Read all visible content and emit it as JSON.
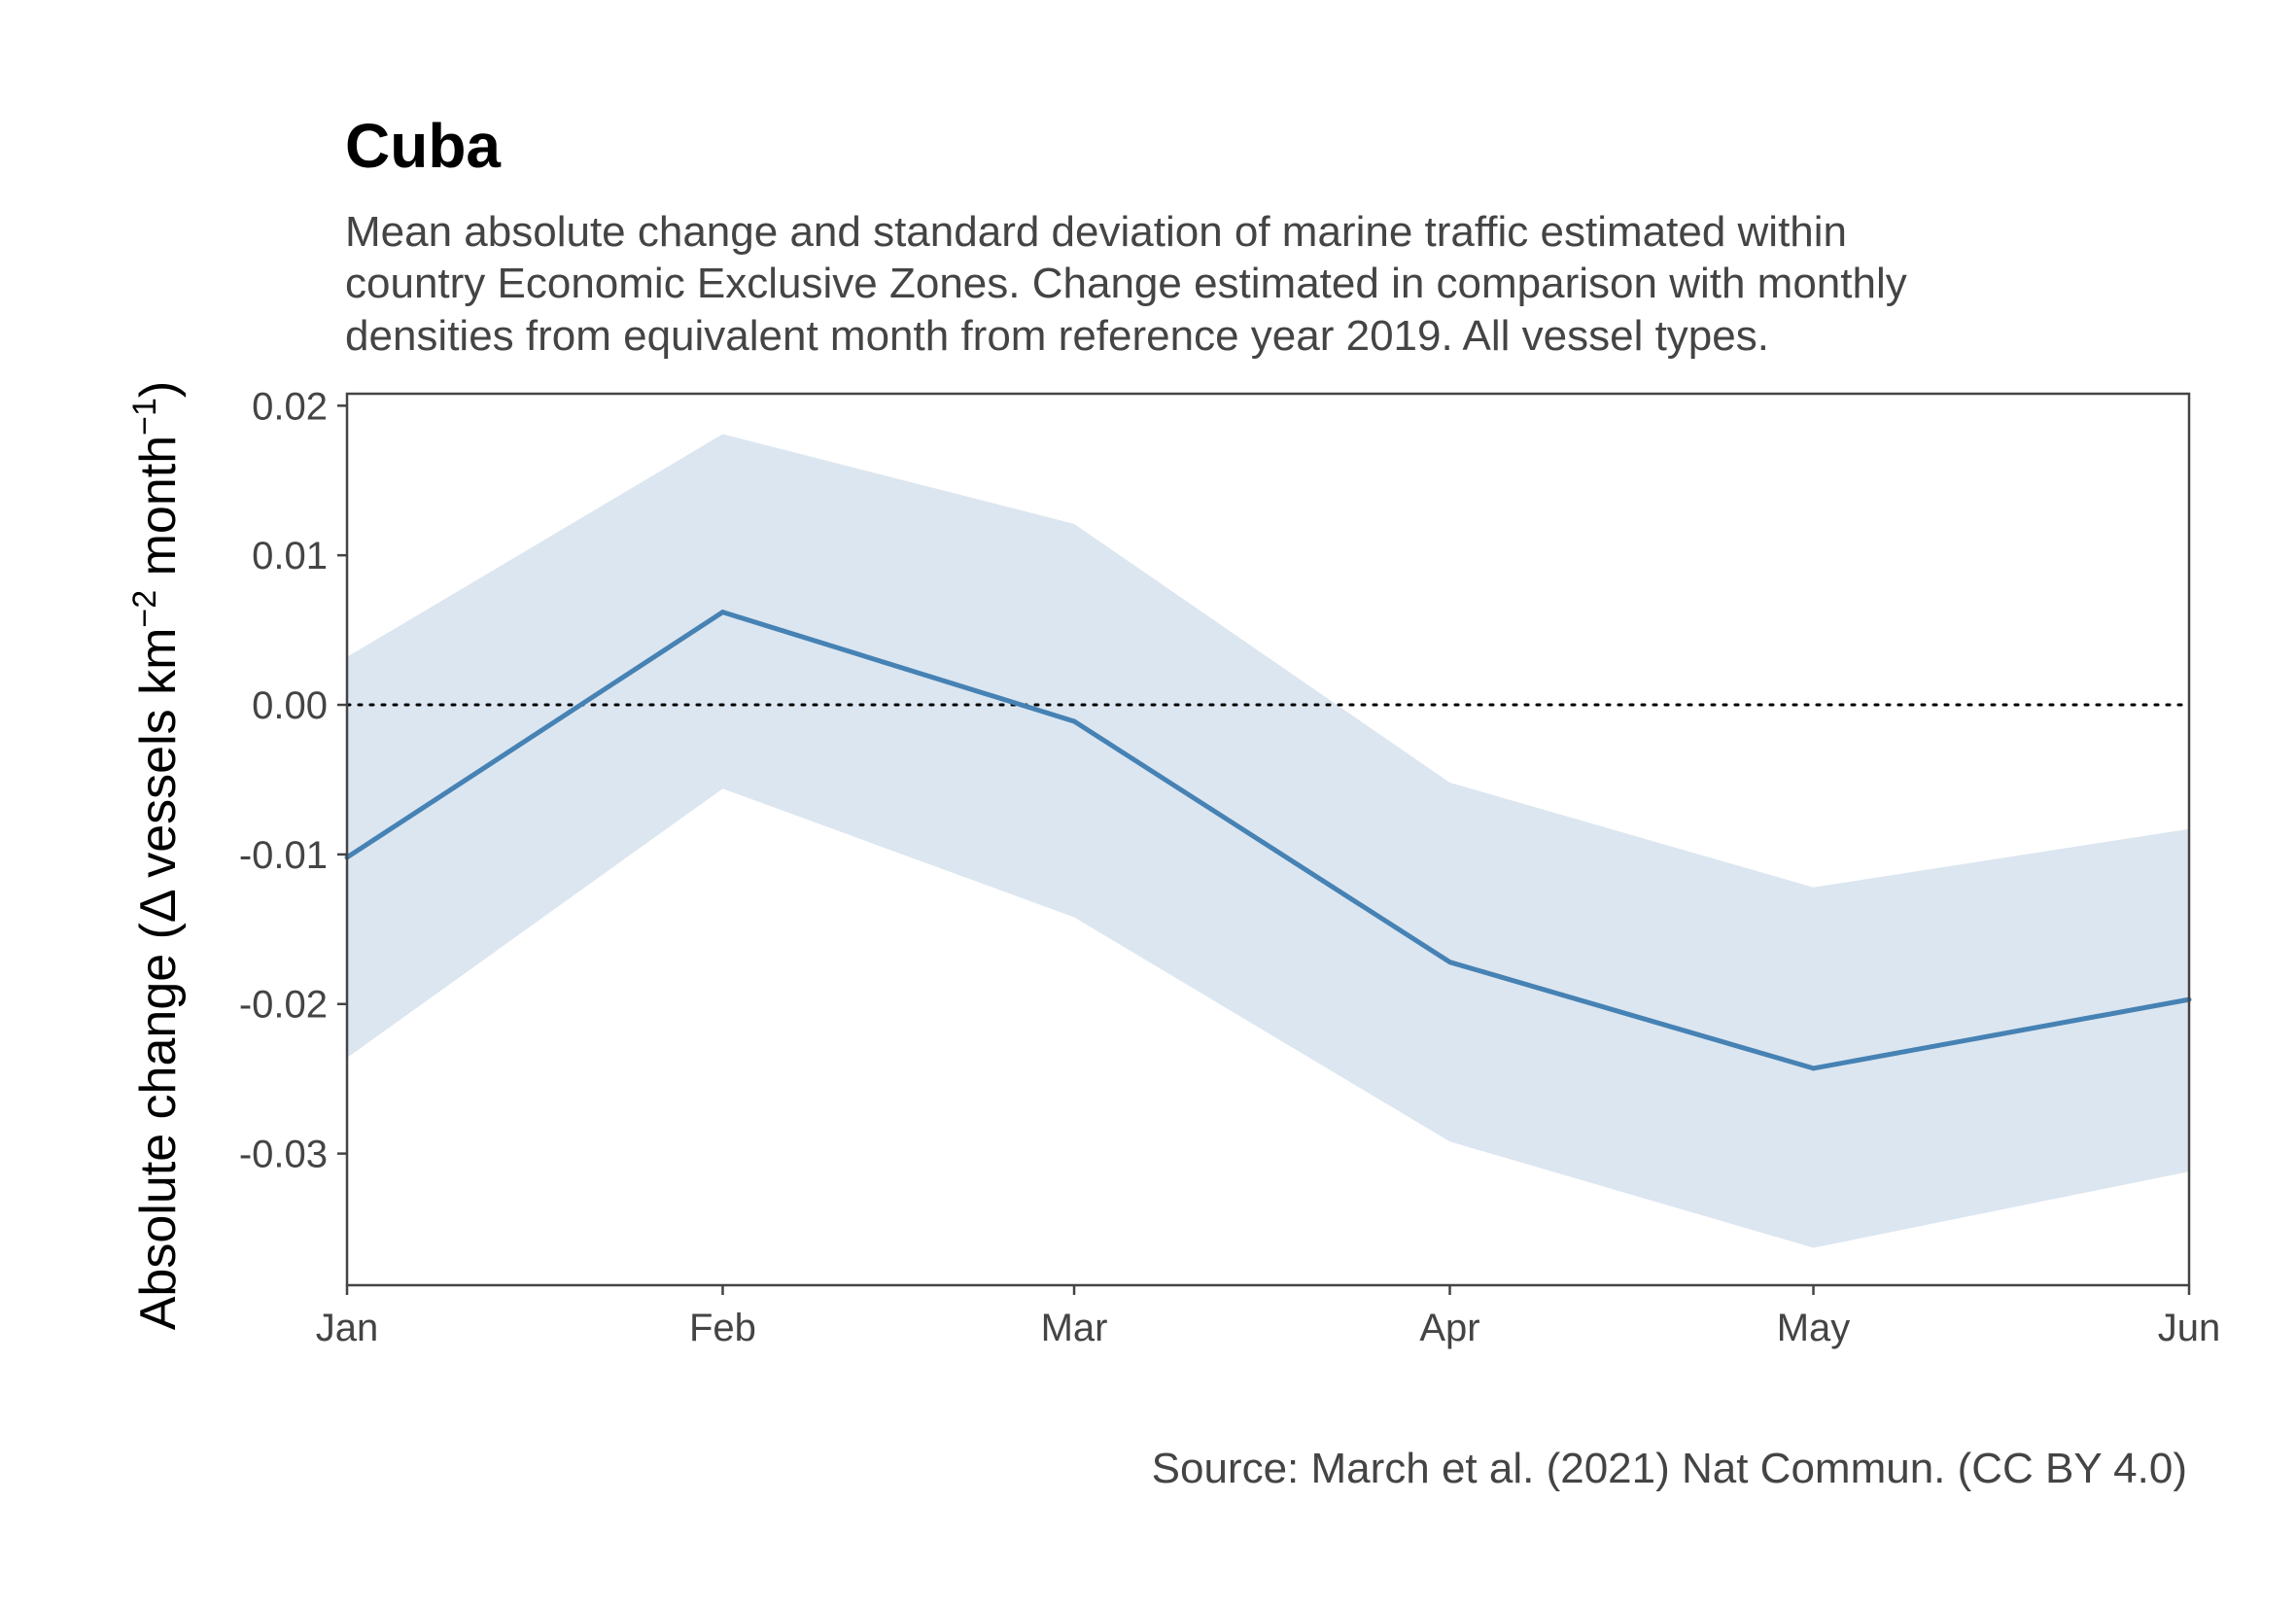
{
  "chart_data": {
    "type": "line",
    "title": "Cuba",
    "subtitle_lines": [
      "Mean absolute change and standard deviation of marine traffic estimated within",
      "country Economic Exclusive Zones. Change estimated in comparison with monthly",
      "densities from equivalent month from reference year 2019. All vessel types."
    ],
    "xlabel": "",
    "ylabel": {
      "prefix": "Absolute change (Δ vessels km",
      "sup1": "−2",
      "middle": " month",
      "sup2": "−1",
      "suffix": ")"
    },
    "categories": [
      "Jan",
      "Feb",
      "Mar",
      "Apr",
      "May",
      "Jun"
    ],
    "x_day_of_year": [
      1,
      32,
      61,
      92,
      122,
      153
    ],
    "series": [
      {
        "values": [
          -0.0102,
          0.0062,
          -0.0011,
          -0.0172,
          -0.0243,
          -0.0197
        ],
        "band_upper": [
          0.0032,
          0.0181,
          0.0121,
          -0.0052,
          -0.0122,
          -0.0083
        ],
        "band_lower": [
          -0.0236,
          -0.0056,
          -0.0142,
          -0.0292,
          -0.0363,
          -0.0312
        ]
      }
    ],
    "ylim": [
      -0.0388,
      0.0208
    ],
    "y_ticks": [
      0.02,
      0.01,
      0.0,
      -0.01,
      -0.02,
      -0.03
    ],
    "y_tick_labels": [
      "0.02",
      "0.01",
      "0.00",
      "-0.01",
      "-0.02",
      "-0.03"
    ],
    "reference_line_y": 0,
    "grid": false,
    "caption": "Source: March et al. (2021) Nat Commun. (CC BY 4.0)",
    "colors": {
      "line": "#4682b4",
      "band": "#dce6f0",
      "axis": "#444444",
      "reference": "#000000"
    }
  }
}
